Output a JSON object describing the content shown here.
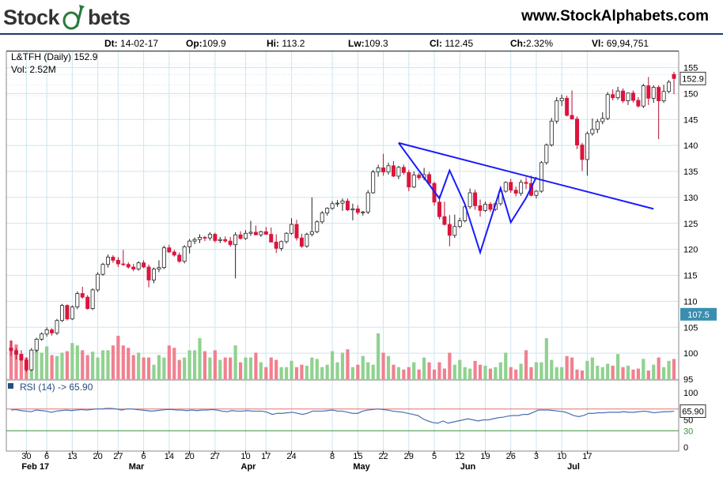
{
  "header": {
    "logo_part1": "Stock",
    "logo_part2": "bets",
    "website": "www.StockAlphabets.com"
  },
  "ohlc": {
    "dt_label": "Dt:",
    "dt": "14-02-17",
    "op_label": "Op:",
    "op": "109.9",
    "hi_label": "Hi:",
    "hi": "113.2",
    "lw_label": "Lw:",
    "lw": "109.3",
    "cl_label": "Cl:",
    "cl": "112.45",
    "ch_label": "Ch:",
    "ch": "2.32%",
    "vl_label": "Vl:",
    "vl": "69,94,751"
  },
  "colors": {
    "up": "#7fc97f",
    "down": "#dc143c",
    "trend": "#1a1aff",
    "rsi": "#4a6fb0",
    "grid": "#cde5ee",
    "accent": "#3a8fb0"
  },
  "chart_data": {
    "type": "candlestick",
    "title": "L&TFH (Daily) 152.9",
    "volume_label": "Vol: 2.52M",
    "price_ylim": [
      95,
      156
    ],
    "price_ticks": [
      155,
      150,
      145,
      140,
      135,
      130,
      125,
      120,
      115,
      110,
      105,
      100,
      95
    ],
    "last_price_label": "152.9",
    "marker_label": "107.5",
    "x_tick_labels": [
      "30",
      "6",
      "13",
      "20",
      "27",
      "6",
      "14",
      "20",
      "27",
      "10",
      "17",
      "24",
      "8",
      "15",
      "22",
      "29",
      "5",
      "12",
      "19",
      "26",
      "3",
      "10",
      "17"
    ],
    "month_labels": [
      "Feb 17",
      "Mar",
      "Apr",
      "May",
      "Jun",
      "Jul"
    ],
    "candles": [
      [
        101,
        102.5,
        99.5,
        100.5
      ],
      [
        100.5,
        101,
        98.8,
        99.8
      ],
      [
        99.8,
        100.6,
        98.5,
        98.7
      ],
      [
        98.7,
        99.2,
        96.4,
        96.8
      ],
      [
        96.8,
        101,
        96.6,
        100.6
      ],
      [
        100.6,
        103,
        100.2,
        102.7
      ],
      [
        102.7,
        104,
        102.4,
        103.7
      ],
      [
        103.7,
        105,
        103.2,
        104.5
      ],
      [
        104.5,
        104.8,
        103.4,
        103.9
      ],
      [
        103.9,
        106.6,
        103.5,
        106.3
      ],
      [
        106.3,
        109.5,
        106,
        109.2
      ],
      [
        109.2,
        109.4,
        106.3,
        106.6
      ],
      [
        106.6,
        109.2,
        106.4,
        108.9
      ],
      [
        108.9,
        111.9,
        108.5,
        111.5
      ],
      [
        111.5,
        112.8,
        110.5,
        110.8
      ],
      [
        110.8,
        111.2,
        108.4,
        108.6
      ],
      [
        108.6,
        112.5,
        108.3,
        112.2
      ],
      [
        112.2,
        115.6,
        111.8,
        115.2
      ],
      [
        115.2,
        117.4,
        114.9,
        117.1
      ],
      [
        117.1,
        119,
        116.5,
        118.5
      ],
      [
        118.5,
        118.9,
        117.4,
        117.9
      ],
      [
        117.9,
        118.5,
        116.6,
        117.2
      ],
      [
        117.2,
        119.9,
        116.8,
        117.1
      ],
      [
        117.1,
        117.5,
        116.3,
        116.6
      ],
      [
        116.6,
        117.2,
        115.8,
        116.2
      ],
      [
        116.2,
        117.7,
        115.9,
        117.4
      ],
      [
        117.4,
        117.9,
        116.4,
        116.6
      ],
      [
        116.6,
        117.1,
        112.7,
        114.1
      ],
      [
        114.1,
        116.5,
        113.5,
        116.2
      ],
      [
        116.2,
        117.9,
        115.6,
        116.5
      ],
      [
        116.5,
        120.7,
        116.2,
        120.3
      ],
      [
        120.3,
        120.9,
        119.3,
        119.5
      ],
      [
        119.5,
        119.9,
        118.6,
        118.9
      ],
      [
        118.9,
        119.4,
        117.4,
        117.7
      ],
      [
        117.7,
        120.8,
        117.3,
        120.5
      ],
      [
        120.5,
        122,
        119.2,
        121.6
      ],
      [
        121.6,
        122.3,
        121,
        121.9
      ],
      [
        121.9,
        122.9,
        121.2,
        122.3
      ],
      [
        122.3,
        122.6,
        121.6,
        122.2
      ],
      [
        122.2,
        123.3,
        121.7,
        122.9
      ],
      [
        122.9,
        123.2,
        121.3,
        121.7
      ],
      [
        121.7,
        122.4,
        121.2,
        121.9
      ],
      [
        121.9,
        122.5,
        121.3,
        121.6
      ],
      [
        121.6,
        122.4,
        120.5,
        120.9
      ],
      [
        120.9,
        123.3,
        114.4,
        122.8
      ],
      [
        122.8,
        123.5,
        121.9,
        122.1
      ],
      [
        122.1,
        123.7,
        121.8,
        123.1
      ],
      [
        123.1,
        125.5,
        122.6,
        123.3
      ],
      [
        123.3,
        124.6,
        122.7,
        122.8
      ],
      [
        122.8,
        123.6,
        122.4,
        123.4
      ],
      [
        123.4,
        124.3,
        122.8,
        122.9
      ],
      [
        122.9,
        124.2,
        121.9,
        121.4
      ],
      [
        121.4,
        122.9,
        119.3,
        120.2
      ],
      [
        120.2,
        121.7,
        119.7,
        121.5
      ],
      [
        121.5,
        123.3,
        121.1,
        123.1
      ],
      [
        123.1,
        126,
        122.8,
        124.8
      ],
      [
        124.8,
        125.7,
        121.7,
        122.2
      ],
      [
        122.2,
        123,
        120.3,
        120.6
      ],
      [
        120.6,
        123.2,
        120.3,
        122.9
      ],
      [
        122.9,
        130,
        122.5,
        123.4
      ],
      [
        123.4,
        125.6,
        123.1,
        125.3
      ],
      [
        125.3,
        127.4,
        124.9,
        127
      ],
      [
        127,
        128.1,
        126.5,
        127.9
      ],
      [
        127.9,
        129.3,
        127.6,
        128.8
      ],
      [
        128.8,
        129.5,
        128.2,
        128.9
      ],
      [
        128.9,
        129.8,
        127.4,
        129.3
      ],
      [
        129.3,
        129.8,
        127.4,
        127.6
      ],
      [
        127.6,
        128.8,
        125.6,
        127.8
      ],
      [
        127.8,
        128.5,
        126.7,
        127.1
      ],
      [
        127.1,
        127.4,
        126.5,
        127.2
      ],
      [
        127.2,
        131.4,
        126.8,
        130.9
      ],
      [
        130.9,
        135.3,
        130.7,
        134.9
      ],
      [
        134.9,
        136.3,
        134,
        135.7
      ],
      [
        135.7,
        138.4,
        134.2,
        134.9
      ],
      [
        134.9,
        136.7,
        134.4,
        136.1
      ],
      [
        136.1,
        137,
        133.9,
        134.1
      ],
      [
        134.1,
        136.1,
        133.5,
        135.8
      ],
      [
        135.8,
        136.3,
        134.4,
        134.8
      ],
      [
        134.8,
        135.3,
        131.2,
        132
      ],
      [
        132,
        135,
        131.8,
        134.3
      ],
      [
        134.3,
        134.7,
        133.4,
        133.8
      ],
      [
        133.8,
        135.7,
        133.3,
        134.4
      ],
      [
        134.4,
        134.9,
        132.6,
        132.7
      ],
      [
        132.7,
        133,
        128.4,
        129.1
      ],
      [
        129.1,
        130.4,
        125.8,
        126.3
      ],
      [
        126.3,
        129.2,
        124.6,
        124.8
      ],
      [
        124.8,
        126.6,
        120.6,
        122.7
      ],
      [
        122.7,
        126.7,
        122.2,
        124.4
      ],
      [
        124.4,
        126.1,
        124.1,
        125.5
      ],
      [
        125.5,
        128.8,
        125.2,
        128.2
      ],
      [
        128.2,
        131.7,
        127.8,
        130.9
      ],
      [
        130.9,
        131.5,
        127.6,
        128.4
      ],
      [
        128.4,
        129.6,
        126.3,
        127.5
      ],
      [
        127.5,
        129.2,
        127.2,
        128.7
      ],
      [
        128.7,
        129.1,
        127.2,
        127.7
      ],
      [
        127.7,
        129.1,
        127.4,
        128.8
      ],
      [
        128.8,
        131.5,
        128.4,
        131.2
      ],
      [
        131.2,
        133.1,
        130.9,
        132.9
      ],
      [
        132.9,
        133.6,
        130.9,
        131.4
      ],
      [
        131.4,
        132.1,
        130.2,
        130.8
      ],
      [
        130.8,
        133.4,
        130.3,
        132.9
      ],
      [
        132.9,
        133.9,
        131.6,
        132.7
      ],
      [
        132.7,
        134.2,
        130.2,
        130.4
      ],
      [
        130.4,
        131.4,
        129.8,
        131.2
      ],
      [
        131.2,
        137,
        130.9,
        136.7
      ],
      [
        136.7,
        140.4,
        136.3,
        140.1
      ],
      [
        140.1,
        145.3,
        139.8,
        144.7
      ],
      [
        144.7,
        149.3,
        144.2,
        148.6
      ],
      [
        148.6,
        149.8,
        147.6,
        149.1
      ],
      [
        149.1,
        149.6,
        145.6,
        145.8
      ],
      [
        145.8,
        150.6,
        145.5,
        145.1
      ],
      [
        145.1,
        145.6,
        139.3,
        140.1
      ],
      [
        140.1,
        140.5,
        135.1,
        137.3
      ],
      [
        137.3,
        142.7,
        134.2,
        142.3
      ],
      [
        142.3,
        145.2,
        141.9,
        143.1
      ],
      [
        143.1,
        145.1,
        142.4,
        144.6
      ],
      [
        144.6,
        146.4,
        144.1,
        145.2
      ],
      [
        145.2,
        150.3,
        144.9,
        149.8
      ],
      [
        149.8,
        150.8,
        148.7,
        149.2
      ],
      [
        149.2,
        151.3,
        148.8,
        150.5
      ],
      [
        150.5,
        151,
        148.2,
        148.6
      ],
      [
        148.6,
        150.2,
        147.8,
        150.1
      ],
      [
        150.1,
        150.6,
        148.3,
        148.7
      ],
      [
        148.7,
        149.3,
        147.3,
        147.6
      ],
      [
        147.6,
        151.9,
        147.2,
        151.5
      ],
      [
        151.5,
        153.2,
        147.8,
        149.1
      ],
      [
        149.1,
        151.6,
        148.2,
        151.2
      ],
      [
        151.2,
        151.6,
        141.2,
        148.6
      ],
      [
        148.6,
        151.7,
        148.2,
        150.4
      ],
      [
        150.4,
        152.6,
        150.1,
        152.2
      ],
      [
        153.7,
        154.2,
        149.9,
        152.9
      ]
    ],
    "volume": [
      80,
      72,
      50,
      45,
      20,
      60,
      55,
      68,
      50,
      48,
      55,
      58,
      75,
      70,
      60,
      50,
      57,
      45,
      60,
      60,
      70,
      90,
      70,
      65,
      50,
      55,
      45,
      45,
      30,
      50,
      45,
      70,
      65,
      40,
      45,
      60,
      60,
      85,
      58,
      45,
      60,
      40,
      45,
      45,
      70,
      35,
      45,
      45,
      55,
      35,
      25,
      45,
      40,
      25,
      25,
      38,
      25,
      30,
      28,
      45,
      42,
      25,
      30,
      58,
      35,
      55,
      62,
      25,
      30,
      48,
      35,
      30,
      95,
      55,
      48,
      30,
      25,
      20,
      25,
      35,
      20,
      45,
      35,
      20,
      35,
      22,
      55,
      30,
      40,
      25,
      22,
      38,
      30,
      28,
      22,
      25,
      35,
      55,
      25,
      20,
      32,
      60,
      25,
      35,
      35,
      85,
      40,
      25,
      25,
      48,
      45,
      20,
      18,
      38,
      45,
      28,
      25,
      32,
      28,
      52,
      25,
      28,
      20,
      22,
      42,
      18,
      30,
      45,
      25,
      38,
      42,
      60,
      22
    ],
    "rsi": {
      "label": "RSI (14) -> 65.90",
      "value_label": "65.90",
      "ylim": [
        0,
        100
      ],
      "ticks": [
        100,
        70,
        50,
        30,
        0
      ],
      "values": [
        68,
        69,
        67,
        66,
        65,
        68,
        67,
        66,
        64,
        66,
        67,
        68,
        67,
        68,
        69,
        68,
        69,
        70,
        70,
        71,
        71,
        70,
        68,
        70,
        70,
        69,
        68,
        67,
        66,
        67,
        68,
        69,
        69,
        68,
        68,
        67,
        68,
        67,
        68,
        68,
        69,
        68,
        66,
        65,
        67,
        66,
        66,
        67,
        66,
        66,
        66,
        64,
        60,
        62,
        62,
        63,
        64,
        62,
        60,
        62,
        66,
        66,
        66,
        67,
        68,
        66,
        66,
        64,
        62,
        62,
        66,
        68,
        69,
        70,
        69,
        68,
        66,
        65,
        64,
        62,
        60,
        58,
        52,
        48,
        45,
        44,
        48,
        44,
        46,
        48,
        50,
        52,
        50,
        48,
        50,
        50,
        52,
        54,
        55,
        57,
        58,
        58,
        60,
        60,
        64,
        68,
        68,
        68,
        67,
        66,
        65,
        62,
        58,
        56,
        58,
        62,
        62,
        63,
        63,
        64,
        64,
        64,
        65,
        64,
        64,
        65,
        66,
        65,
        63,
        64,
        65,
        65,
        66
      ]
    },
    "trendlines": [
      [
        {
          "i": 76,
          "p": 140.5
        },
        {
          "i": 126,
          "p": 127.8
        }
      ],
      [
        {
          "i": 76,
          "p": 140.5
        },
        {
          "i": 84,
          "p": 129.8
        },
        {
          "i": 86,
          "p": 135.2
        },
        {
          "i": 89,
          "p": 128.7
        },
        {
          "i": 92,
          "p": 119.4
        },
        {
          "i": 96,
          "p": 131.8
        },
        {
          "i": 98,
          "p": 125.2
        },
        {
          "i": 101,
          "p": 129.9
        },
        {
          "i": 103,
          "p": 133.9
        }
      ]
    ]
  }
}
